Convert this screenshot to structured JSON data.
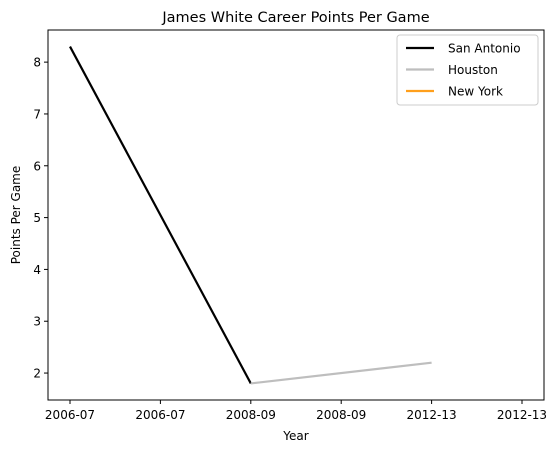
{
  "chart_data": {
    "type": "line",
    "title": "James White  Career Points Per Game",
    "xlabel": "Year",
    "ylabel": "Points Per Game",
    "x_ticks": [
      "2006-07",
      "2006-07",
      "2008-09",
      "2008-09",
      "2012-13",
      "2012-13"
    ],
    "ylim": [
      1.48,
      8.62
    ],
    "y_ticks": [
      2,
      3,
      4,
      5,
      6,
      7,
      8
    ],
    "grid": false,
    "legend_position": "top-right",
    "series": [
      {
        "name": "San Antonio",
        "color": "#000000",
        "points": [
          {
            "x": 0,
            "y": 8.3
          },
          {
            "x": 2,
            "y": 1.8
          }
        ]
      },
      {
        "name": "Houston",
        "color": "#bebebe",
        "points": [
          {
            "x": 2,
            "y": 1.8
          },
          {
            "x": 4,
            "y": 2.2
          }
        ]
      },
      {
        "name": "New York",
        "color": "#ff9f1c",
        "points": []
      }
    ]
  }
}
